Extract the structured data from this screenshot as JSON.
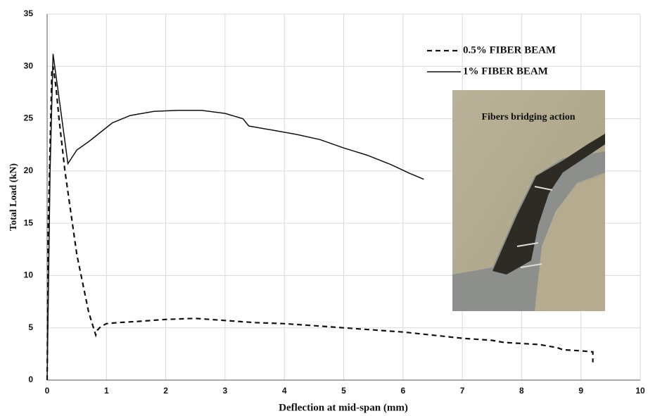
{
  "chart_data": {
    "type": "line",
    "xlabel": "Deflection at mid-span (mm)",
    "ylabel": "Total Load (kN)",
    "annotation": "Fibers bridging action",
    "xlim": [
      0,
      10
    ],
    "xticks": [
      0,
      1,
      2,
      3,
      4,
      5,
      6,
      7,
      8,
      9,
      10
    ],
    "ylim": [
      0,
      35
    ],
    "yticks": [
      0,
      5,
      10,
      15,
      20,
      25,
      30,
      35
    ],
    "grid": true,
    "legend": "upper right",
    "series": [
      {
        "name": "0.5% FIBER BEAM",
        "color": "#111111",
        "style": "dashed",
        "x": [
          0,
          0.02,
          0.08,
          0.1,
          0.15,
          0.2,
          0.3,
          0.5,
          0.7,
          0.82,
          0.85,
          0.9,
          1.0,
          1.2,
          1.5,
          2,
          2.5,
          3,
          3.5,
          4,
          4.5,
          5,
          5.5,
          6,
          6.5,
          7,
          7.5,
          7.7,
          8,
          8.3,
          8.6,
          8.7,
          9,
          9.2,
          9.2
        ],
        "values": [
          0,
          15,
          29.5,
          30,
          28,
          25,
          20,
          12,
          6.5,
          4.3,
          4.8,
          5.1,
          5.4,
          5.5,
          5.6,
          5.8,
          5.9,
          5.7,
          5.5,
          5.4,
          5.2,
          5.0,
          4.8,
          4.6,
          4.3,
          4.0,
          3.8,
          3.6,
          3.5,
          3.4,
          3.1,
          2.9,
          2.8,
          2.7,
          1.7
        ]
      },
      {
        "name": "1% FIBER BEAM",
        "color": "#111111",
        "style": "solid",
        "x": [
          0,
          0.05,
          0.1,
          0.2,
          0.35,
          0.5,
          0.7,
          0.9,
          1.1,
          1.4,
          1.8,
          2.2,
          2.6,
          3,
          3.3,
          3.4,
          3.8,
          4.2,
          4.6,
          5,
          5.4,
          5.8,
          6.1,
          6.35
        ],
        "values": [
          0,
          20,
          31.2,
          27,
          20.7,
          22,
          22.8,
          23.7,
          24.6,
          25.3,
          25.7,
          25.8,
          25.8,
          25.5,
          25,
          24.3,
          23.9,
          23.5,
          23,
          22.2,
          21.5,
          20.6,
          19.8,
          19.2
        ]
      }
    ]
  }
}
